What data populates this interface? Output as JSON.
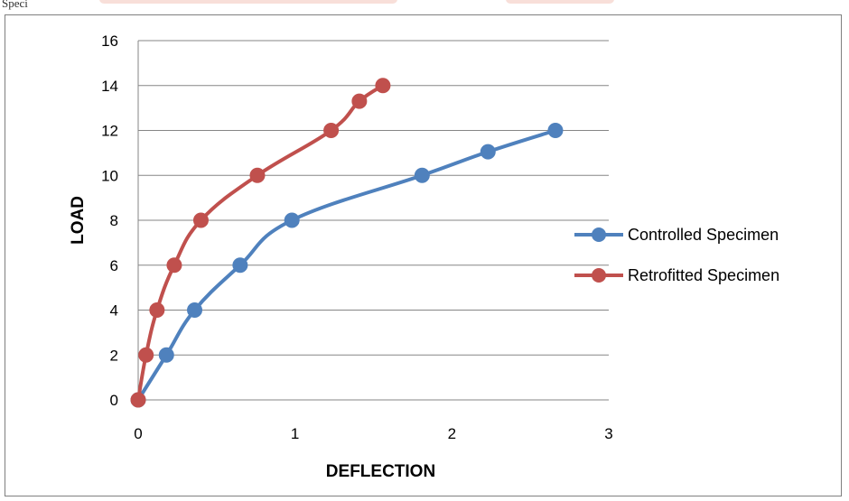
{
  "page": {
    "top_text": "Speci"
  },
  "chart_data": {
    "type": "line",
    "title": "",
    "xlabel": "DEFLECTION",
    "ylabel": "LOAD",
    "xlim": [
      0,
      3
    ],
    "ylim": [
      0,
      16
    ],
    "xticks": [
      "0",
      "1",
      "2",
      "3"
    ],
    "yticks": [
      "0",
      "2",
      "4",
      "6",
      "8",
      "10",
      "12",
      "14",
      "16"
    ],
    "grid": "horizontal",
    "legend": "right",
    "series": [
      {
        "name": "Controlled Specimen",
        "color": "#4f81bd",
        "x": [
          0,
          0.18,
          0.36,
          0.65,
          0.98,
          1.81,
          2.23,
          2.66
        ],
        "y": [
          0,
          2,
          4,
          6,
          8,
          10,
          11.05,
          12
        ]
      },
      {
        "name": "Retrofitted Specimen",
        "color": "#c0504d",
        "x": [
          0,
          0.05,
          0.12,
          0.23,
          0.4,
          0.76,
          1.23,
          1.41,
          1.56
        ],
        "y": [
          0,
          2,
          4,
          6,
          8,
          10,
          12,
          13.3,
          14
        ]
      }
    ]
  }
}
